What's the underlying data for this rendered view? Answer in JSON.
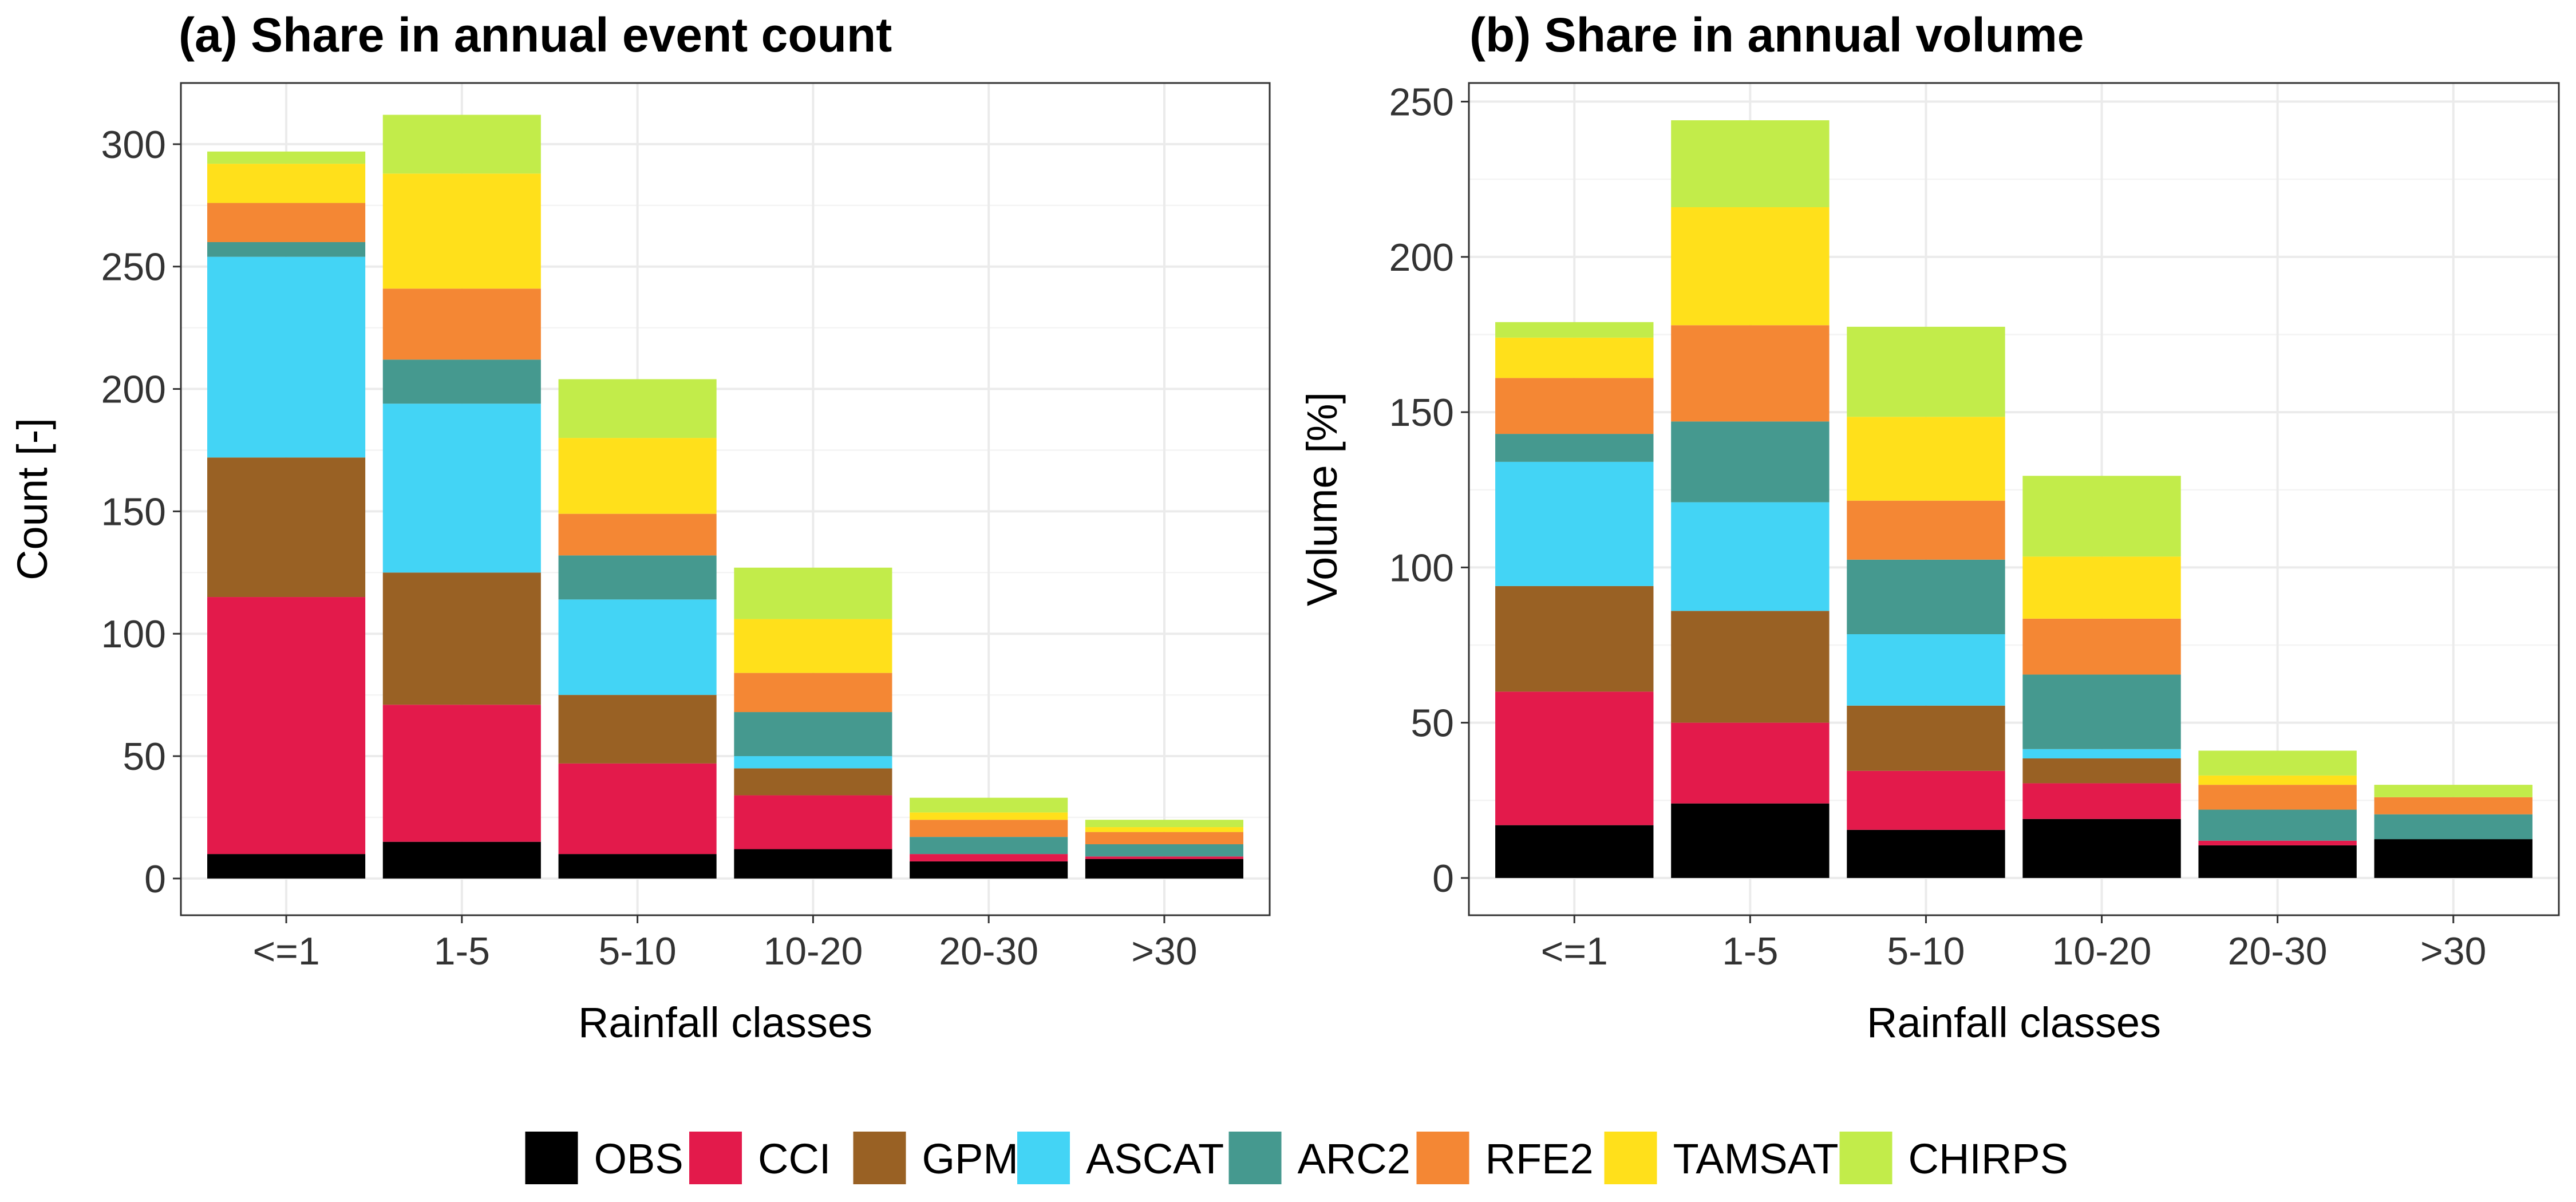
{
  "chart_data": [
    {
      "type": "bar",
      "stacked": true,
      "title": "(a) Share in annual event count",
      "xlabel": "Rainfall classes",
      "ylabel": "Count [-]",
      "categories": [
        "<=1",
        "1-5",
        "5-10",
        "10-20",
        "20-30",
        ">30"
      ],
      "ylim": [
        -15,
        325
      ],
      "yticks": [
        0,
        50,
        100,
        150,
        200,
        250,
        300
      ],
      "grid": true,
      "series": [
        {
          "name": "OBS",
          "values": [
            10,
            15,
            10,
            12,
            7,
            8
          ]
        },
        {
          "name": "CCI",
          "values": [
            105,
            56,
            37,
            22,
            3,
            1
          ]
        },
        {
          "name": "GPM",
          "values": [
            57,
            54,
            28,
            11,
            0,
            0
          ]
        },
        {
          "name": "ASCAT",
          "values": [
            82,
            69,
            39,
            5,
            0,
            0
          ]
        },
        {
          "name": "ARC2",
          "values": [
            6,
            18,
            18,
            18,
            7,
            5
          ]
        },
        {
          "name": "RFE2",
          "values": [
            16,
            29,
            17,
            16,
            7,
            5
          ]
        },
        {
          "name": "TAMSAT",
          "values": [
            16,
            47,
            31,
            22,
            3,
            2
          ]
        },
        {
          "name": "CHIRPS",
          "values": [
            5,
            24,
            24,
            21,
            6,
            3
          ]
        }
      ]
    },
    {
      "type": "bar",
      "stacked": true,
      "title": "(b) Share in annual volume",
      "xlabel": "Rainfall classes",
      "ylabel": "Volume [%]",
      "categories": [
        "<=1",
        "1-5",
        "5-10",
        "10-20",
        "20-30",
        ">30"
      ],
      "ylim": [
        -12,
        256
      ],
      "yticks": [
        0,
        50,
        100,
        150,
        200,
        250
      ],
      "grid": true,
      "series": [
        {
          "name": "OBS",
          "values": [
            17,
            24,
            15.5,
            19,
            10.5,
            12.5
          ]
        },
        {
          "name": "CCI",
          "values": [
            43,
            26,
            19,
            11.5,
            1.5,
            0
          ]
        },
        {
          "name": "GPM",
          "values": [
            34,
            36,
            21,
            8,
            0,
            0
          ]
        },
        {
          "name": "ASCAT",
          "values": [
            40,
            35,
            23,
            3,
            0,
            0
          ]
        },
        {
          "name": "ARC2",
          "values": [
            9,
            26,
            24,
            24,
            10,
            8
          ]
        },
        {
          "name": "RFE2",
          "values": [
            18,
            31,
            19,
            18,
            8,
            5.5
          ]
        },
        {
          "name": "TAMSAT",
          "values": [
            13,
            38,
            27,
            20,
            3,
            0
          ]
        },
        {
          "name": "CHIRPS",
          "values": [
            5,
            28,
            29,
            26,
            8,
            4
          ]
        }
      ]
    }
  ],
  "legend": {
    "position": "bottom",
    "items": [
      {
        "label": "OBS",
        "color": "#000000"
      },
      {
        "label": "CCI",
        "color": "#E31A4B"
      },
      {
        "label": "GPM",
        "color": "#996124"
      },
      {
        "label": "ASCAT",
        "color": "#43D4F5"
      },
      {
        "label": "ARC2",
        "color": "#45998F"
      },
      {
        "label": "RFE2",
        "color": "#F48734"
      },
      {
        "label": "TAMSAT",
        "color": "#FFE01B"
      },
      {
        "label": "CHIRPS",
        "color": "#C2EC4A"
      }
    ]
  }
}
